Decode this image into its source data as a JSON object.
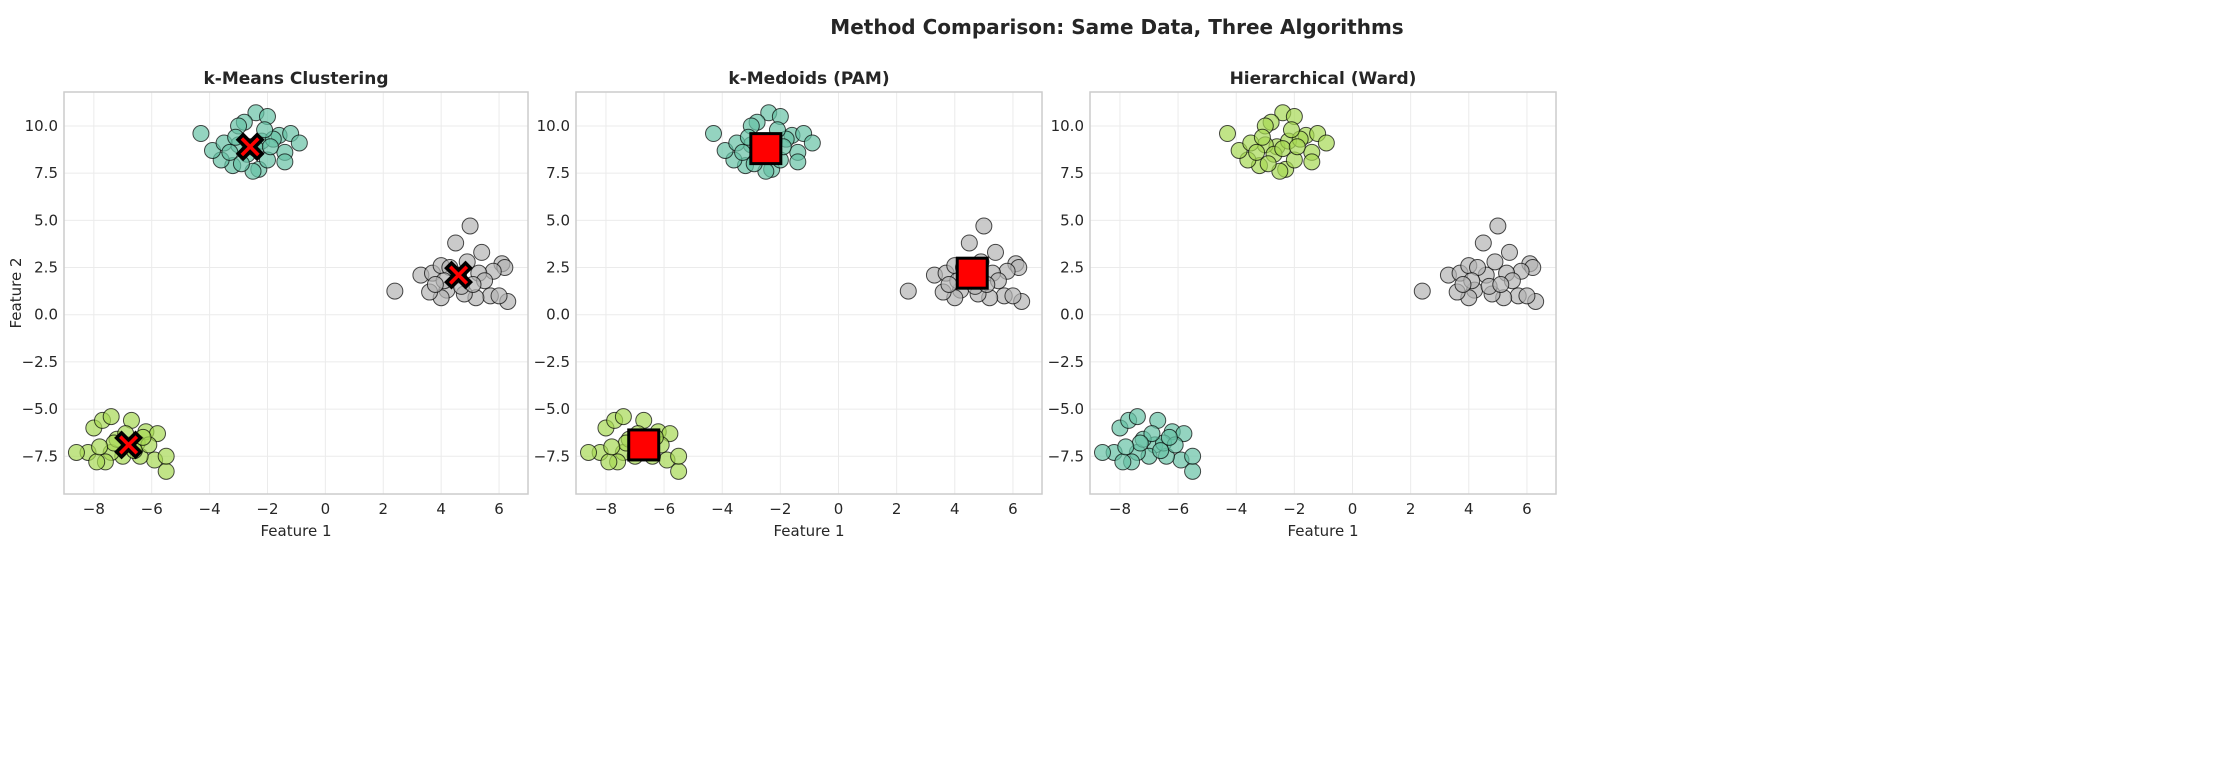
{
  "chart_data": {
    "type": "scatter",
    "suptitle": "Method Comparison: Same Data, Three Algorithms",
    "xlim": [
      -9.03,
      7.0
    ],
    "ylim": [
      -9.5,
      11.8
    ],
    "xticks": [
      -8,
      -6,
      -4,
      -2,
      0,
      2,
      4,
      6
    ],
    "xtick_labels": [
      "−8",
      "−6",
      "−4",
      "−2",
      "0",
      "2",
      "4",
      "6"
    ],
    "yticks": [
      -7.5,
      -5,
      -2.5,
      0,
      2.5,
      5,
      7.5,
      10
    ],
    "ytick_labels": [
      "−7.5",
      "−5.0",
      "−2.5",
      "0.0",
      "2.5",
      "5.0",
      "7.5",
      "10.0"
    ],
    "grid": true,
    "colors": {
      "teal": "#66c2a5",
      "lime": "#a6d854",
      "gray": "#b3b3b3",
      "center": "#ff0000"
    },
    "points": {
      "A": [
        [
          -2.6,
          8.9
        ],
        [
          -2.2,
          9.2
        ],
        [
          -3.0,
          9.0
        ],
        [
          -2.4,
          10.7
        ],
        [
          -2.0,
          10.5
        ],
        [
          -2.8,
          10.2
        ],
        [
          -3.0,
          10.0
        ],
        [
          -1.6,
          9.5
        ],
        [
          -1.2,
          9.6
        ],
        [
          -0.9,
          9.1
        ],
        [
          -1.4,
          8.6
        ],
        [
          -1.4,
          8.1
        ],
        [
          -2.3,
          7.7
        ],
        [
          -2.5,
          7.6
        ],
        [
          -3.2,
          7.9
        ],
        [
          -3.6,
          8.2
        ],
        [
          -3.9,
          8.7
        ],
        [
          -3.5,
          9.1
        ],
        [
          -4.3,
          9.6
        ],
        [
          -2.0,
          8.2
        ],
        [
          -2.7,
          8.5
        ],
        [
          -3.3,
          8.6
        ],
        [
          -1.8,
          9.3
        ],
        [
          -2.1,
          9.8
        ],
        [
          -3.1,
          9.4
        ],
        [
          -2.9,
          8.0
        ],
        [
          -2.4,
          8.8
        ],
        [
          -1.9,
          8.9
        ]
      ],
      "B": [
        [
          4.6,
          2.1
        ],
        [
          2.4,
          1.25
        ],
        [
          5.0,
          4.7
        ],
        [
          6.3,
          0.7
        ],
        [
          4.5,
          3.8
        ],
        [
          5.4,
          3.3
        ],
        [
          6.1,
          2.7
        ],
        [
          6.2,
          2.5
        ],
        [
          5.8,
          2.3
        ],
        [
          5.7,
          1.0
        ],
        [
          5.2,
          0.9
        ],
        [
          4.8,
          1.1
        ],
        [
          4.2,
          1.3
        ],
        [
          4.0,
          0.9
        ],
        [
          3.6,
          1.2
        ],
        [
          3.3,
          2.1
        ],
        [
          3.7,
          2.2
        ],
        [
          4.0,
          2.6
        ],
        [
          4.3,
          2.5
        ],
        [
          4.9,
          2.8
        ],
        [
          5.3,
          2.2
        ],
        [
          5.5,
          1.8
        ],
        [
          4.1,
          1.8
        ],
        [
          3.8,
          1.6
        ],
        [
          4.7,
          1.5
        ],
        [
          5.1,
          1.6
        ],
        [
          6.0,
          1.0
        ]
      ],
      "C": [
        [
          -6.8,
          -6.9
        ],
        [
          -8.2,
          -7.3
        ],
        [
          -5.5,
          -8.3
        ],
        [
          -8.0,
          -6.0
        ],
        [
          -7.7,
          -5.6
        ],
        [
          -7.4,
          -5.4
        ],
        [
          -6.7,
          -5.6
        ],
        [
          -6.2,
          -6.2
        ],
        [
          -5.8,
          -6.3
        ],
        [
          -5.9,
          -7.7
        ],
        [
          -5.5,
          -7.5
        ],
        [
          -6.4,
          -7.5
        ],
        [
          -7.0,
          -7.5
        ],
        [
          -7.4,
          -7.3
        ],
        [
          -7.6,
          -7.8
        ],
        [
          -7.9,
          -7.8
        ],
        [
          -8.6,
          -7.3
        ],
        [
          -7.2,
          -6.6
        ],
        [
          -6.5,
          -6.8
        ],
        [
          -6.9,
          -6.3
        ],
        [
          -7.3,
          -6.8
        ],
        [
          -6.1,
          -6.9
        ],
        [
          -6.6,
          -7.2
        ],
        [
          -7.8,
          -7.0
        ],
        [
          -6.3,
          -6.5
        ]
      ]
    },
    "panels": [
      {
        "title": "k-Means Clustering",
        "xlabel": "Feature 1",
        "ylabel": "Feature 2",
        "cluster_colors": {
          "A": "teal",
          "B": "gray",
          "C": "lime"
        },
        "center_marker": "x",
        "centers": [
          [
            -2.6,
            8.9
          ],
          [
            4.6,
            2.1
          ],
          [
            -6.8,
            -6.9
          ]
        ]
      },
      {
        "title": "k-Medoids (PAM)",
        "xlabel": "Feature 1",
        "ylabel": "",
        "cluster_colors": {
          "A": "teal",
          "B": "gray",
          "C": "lime"
        },
        "center_marker": "square",
        "centers": [
          [
            -2.5,
            8.8
          ],
          [
            4.6,
            2.2
          ],
          [
            -6.7,
            -6.9
          ]
        ]
      },
      {
        "title": "Hierarchical (Ward)",
        "xlabel": "Feature 1",
        "ylabel": "",
        "cluster_colors": {
          "A": "lime",
          "B": "gray",
          "C": "teal"
        },
        "center_marker": "none",
        "centers": []
      }
    ]
  }
}
